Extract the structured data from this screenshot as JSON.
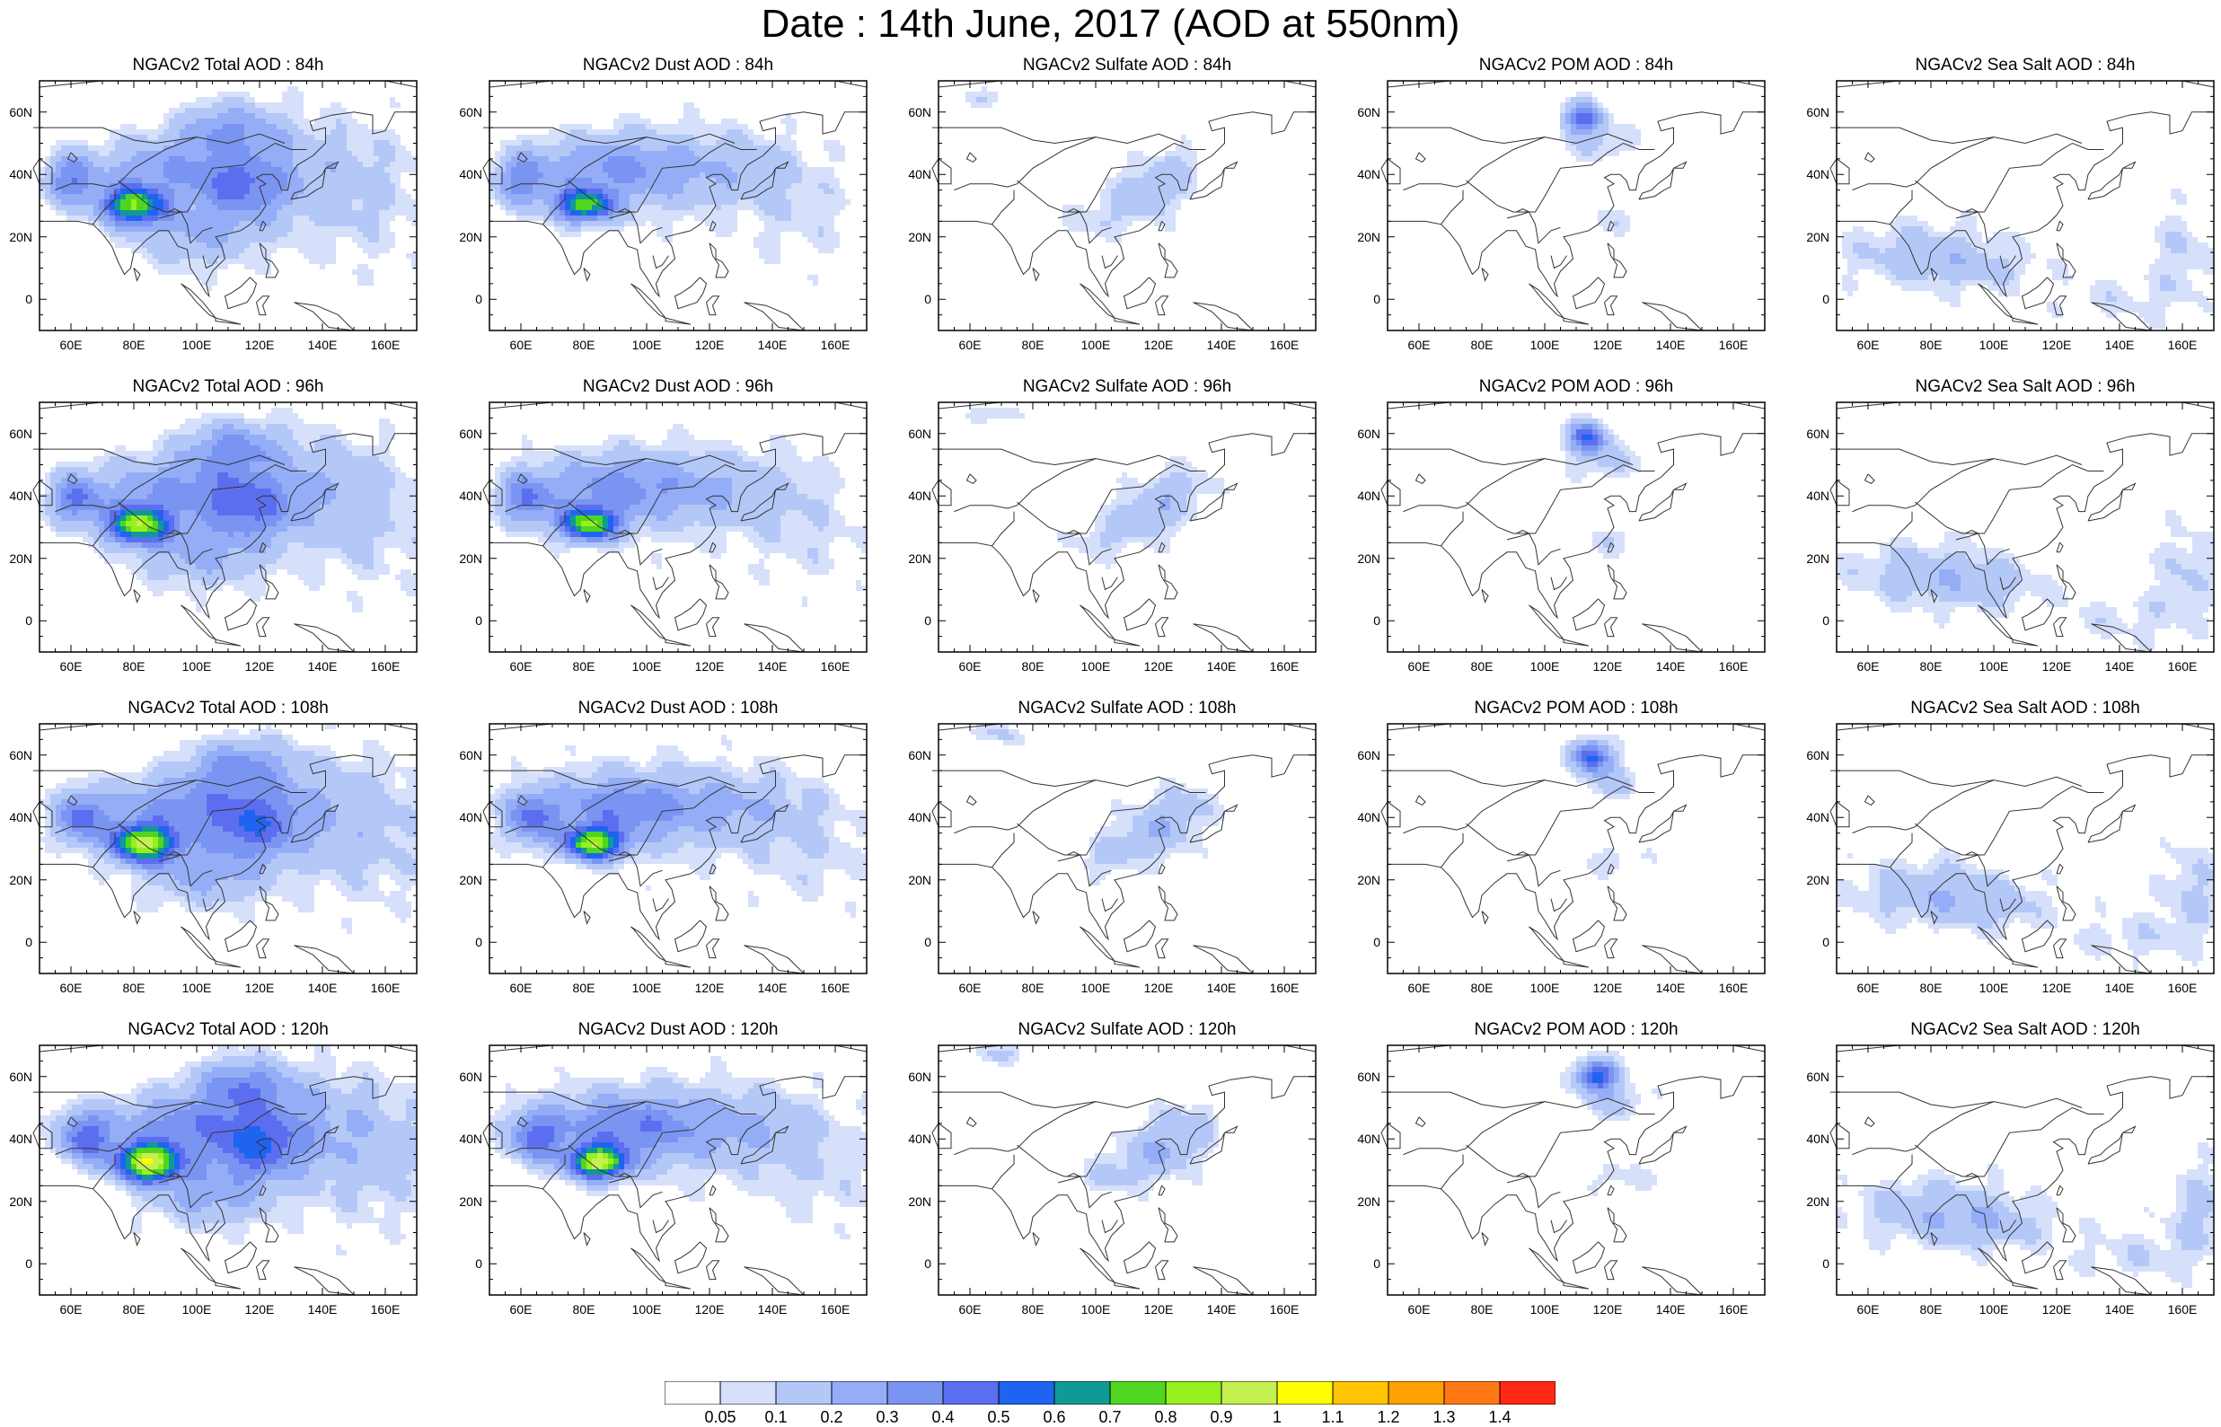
{
  "title": "Date : 14th June, 2017 (AOD at 550nm)",
  "lat_labels": [
    "60N",
    "40N",
    "20N",
    "0"
  ],
  "lon_labels": [
    "60E",
    "80E",
    "100E",
    "120E",
    "140E",
    "160E"
  ],
  "panels": [
    [
      {
        "title": "NGACv2 Total AOD : 84h",
        "species": "total",
        "hour": 84
      },
      {
        "title": "NGACv2 Dust AOD : 84h",
        "species": "dust",
        "hour": 84
      },
      {
        "title": "NGACv2 Sulfate AOD : 84h",
        "species": "sulfate",
        "hour": 84
      },
      {
        "title": "NGACv2 POM AOD : 84h",
        "species": "pom",
        "hour": 84
      },
      {
        "title": "NGACv2 Sea Salt AOD : 84h",
        "species": "seasalt",
        "hour": 84
      }
    ],
    [
      {
        "title": "NGACv2 Total AOD : 96h",
        "species": "total",
        "hour": 96
      },
      {
        "title": "NGACv2 Dust AOD : 96h",
        "species": "dust",
        "hour": 96
      },
      {
        "title": "NGACv2 Sulfate AOD : 96h",
        "species": "sulfate",
        "hour": 96
      },
      {
        "title": "NGACv2 POM AOD : 96h",
        "species": "pom",
        "hour": 96
      },
      {
        "title": "NGACv2 Sea Salt AOD : 96h",
        "species": "seasalt",
        "hour": 96
      }
    ],
    [
      {
        "title": "NGACv2 Total AOD : 108h",
        "species": "total",
        "hour": 108
      },
      {
        "title": "NGACv2 Dust AOD : 108h",
        "species": "dust",
        "hour": 108
      },
      {
        "title": "NGACv2 Sulfate AOD : 108h",
        "species": "sulfate",
        "hour": 108
      },
      {
        "title": "NGACv2 POM AOD : 108h",
        "species": "pom",
        "hour": 108
      },
      {
        "title": "NGACv2 Sea Salt AOD : 108h",
        "species": "seasalt",
        "hour": 108
      }
    ],
    [
      {
        "title": "NGACv2 Total AOD : 120h",
        "species": "total",
        "hour": 120
      },
      {
        "title": "NGACv2 Dust AOD : 120h",
        "species": "dust",
        "hour": 120
      },
      {
        "title": "NGACv2 Sulfate AOD : 120h",
        "species": "sulfate",
        "hour": 120
      },
      {
        "title": "NGACv2 POM AOD : 120h",
        "species": "pom",
        "hour": 120
      },
      {
        "title": "NGACv2 Sea Salt  AOD : 120h",
        "species": "seasalt",
        "hour": 120
      }
    ]
  ],
  "colorbar": {
    "labels": [
      "0.05",
      "0.1",
      "0.2",
      "0.3",
      "0.4",
      "0.5",
      "0.6",
      "0.7",
      "0.8",
      "0.9",
      "1",
      "1.1",
      "1.2",
      "1.3",
      "1.4"
    ],
    "colors": [
      "#ffffff",
      "#d6e0fb",
      "#b4c8f8",
      "#94adf6",
      "#7a94f2",
      "#5c6ef0",
      "#1e64f0",
      "#109a96",
      "#50d620",
      "#96f01e",
      "#c4f050",
      "#ffff00",
      "#ffc400",
      "#ffa000",
      "#ff7814",
      "#ff2814"
    ]
  },
  "map": {
    "lon_range": [
      50,
      170
    ],
    "lat_range": [
      -10,
      70
    ],
    "coast_color": "#333333"
  },
  "chart_data": {
    "type": "heatmap",
    "title": "Date : 14th June, 2017 (AOD at 550nm)",
    "x_axis": {
      "range": [
        50,
        170
      ],
      "ticks": [
        "60E",
        "80E",
        "100E",
        "120E",
        "140E",
        "160E"
      ]
    },
    "y_axis": {
      "range": [
        -10,
        70
      ],
      "ticks": [
        "0",
        "20N",
        "40N",
        "60N"
      ]
    },
    "levels": [
      0.05,
      0.1,
      0.2,
      0.3,
      0.4,
      0.5,
      0.6,
      0.7,
      0.8,
      0.9,
      1,
      1.1,
      1.2,
      1.3,
      1.4
    ],
    "rows": [
      "84h",
      "96h",
      "108h",
      "120h"
    ],
    "columns": [
      "Total",
      "Dust",
      "Sulfate",
      "POM",
      "Sea Salt"
    ],
    "approx_features": {
      "total_peak_region": {
        "lon": [
          75,
          92
        ],
        "lat": [
          25,
          32
        ],
        "aod_approx": 0.85
      },
      "dust_peak_region": {
        "lon": [
          75,
          85
        ],
        "lat": [
          27,
          32
        ],
        "aod_approx": 0.8
      },
      "sulfate_max_region": {
        "lon": [
          105,
          125
        ],
        "lat": [
          25,
          40
        ],
        "aod_approx": 0.2
      },
      "pom_plume_region": {
        "lon": [
          108,
          122
        ],
        "lat": [
          48,
          65
        ],
        "aod_approx": 0.5
      },
      "seasalt_max_region": {
        "lon": [
          60,
          100
        ],
        "lat": [
          5,
          25
        ],
        "aod_approx": 0.15
      }
    }
  }
}
